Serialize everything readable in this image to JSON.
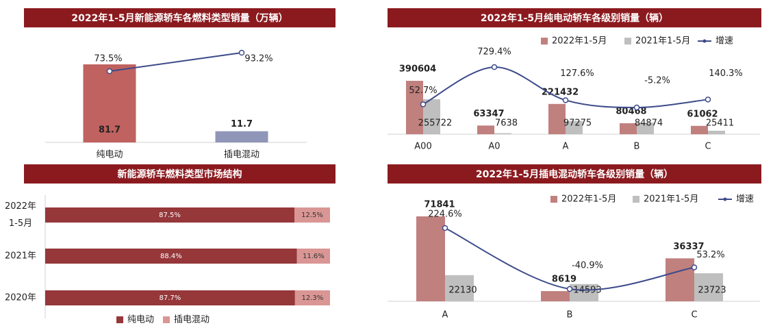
{
  "chart_data": [
    {
      "type": "bar",
      "title": "2022年1-5月新能源轿车各燃料类型销量（万辆）",
      "categories": [
        "纯电动",
        "插电混动"
      ],
      "series": [
        {
          "values": [
            81.7,
            11.7
          ],
          "colors": [
            "#c0625f",
            "#8f96b8"
          ]
        },
        {
          "type": "line",
          "values": [
            73.5,
            93.2
          ],
          "value_labels": [
            "73.5%",
            "93.2%"
          ],
          "color": "#3c4a8a"
        }
      ]
    },
    {
      "type": "bar",
      "title": "2022年1-5月纯电动轿车各级别销量（辆）",
      "categories": [
        "A00",
        "A0",
        "A",
        "B",
        "C"
      ],
      "series": [
        {
          "name": "2022年1-5月",
          "color": "#c0807e",
          "values": [
            390604,
            63347,
            221432,
            80468,
            61062
          ]
        },
        {
          "name": "2021年1-5月",
          "color": "#bfbfbf",
          "values": [
            255722,
            7638,
            97275,
            84874,
            25411
          ]
        },
        {
          "name": "增速",
          "type": "line",
          "color": "#3c4a8a",
          "values": [
            52.7,
            729.4,
            127.6,
            -5.2,
            140.3
          ],
          "value_labels": [
            "52.7%",
            "729.4%",
            "127.6%",
            "-5.2%",
            "140.3%"
          ]
        }
      ],
      "legend": "top"
    },
    {
      "type": "bar",
      "horizontal": true,
      "stacked": true,
      "title": "新能源轿车燃料类型市场结构",
      "categories": [
        [
          "2022年",
          "1-5月"
        ],
        [
          "2021年"
        ],
        [
          "2020年"
        ]
      ],
      "series": [
        {
          "name": "纯电动",
          "color": "#96373a",
          "values": [
            87.5,
            88.4,
            87.7
          ],
          "value_labels": [
            "87.5%",
            "88.4%",
            "87.7%"
          ]
        },
        {
          "name": "插电混动",
          "color": "#d99694",
          "values": [
            12.5,
            11.6,
            12.3
          ],
          "value_labels": [
            "12.5%",
            "11.6%",
            "12.3%"
          ]
        }
      ],
      "legend": "bottom"
    },
    {
      "type": "bar",
      "title": "2022年1-5月插电混动轿车各级别销量（辆）",
      "categories": [
        "A",
        "B",
        "C"
      ],
      "series": [
        {
          "name": "2022年1-5月",
          "color": "#c0807e",
          "values": [
            71841,
            8619,
            36337
          ]
        },
        {
          "name": "2021年1-5月",
          "color": "#bfbfbf",
          "values": [
            22130,
            14593,
            23723
          ]
        },
        {
          "name": "增速",
          "type": "line",
          "color": "#3c4a8a",
          "values": [
            224.6,
            -40.9,
            53.2
          ],
          "value_labels": [
            "224.6%",
            "-40.9%",
            "53.2%"
          ]
        }
      ],
      "legend": "top"
    }
  ]
}
